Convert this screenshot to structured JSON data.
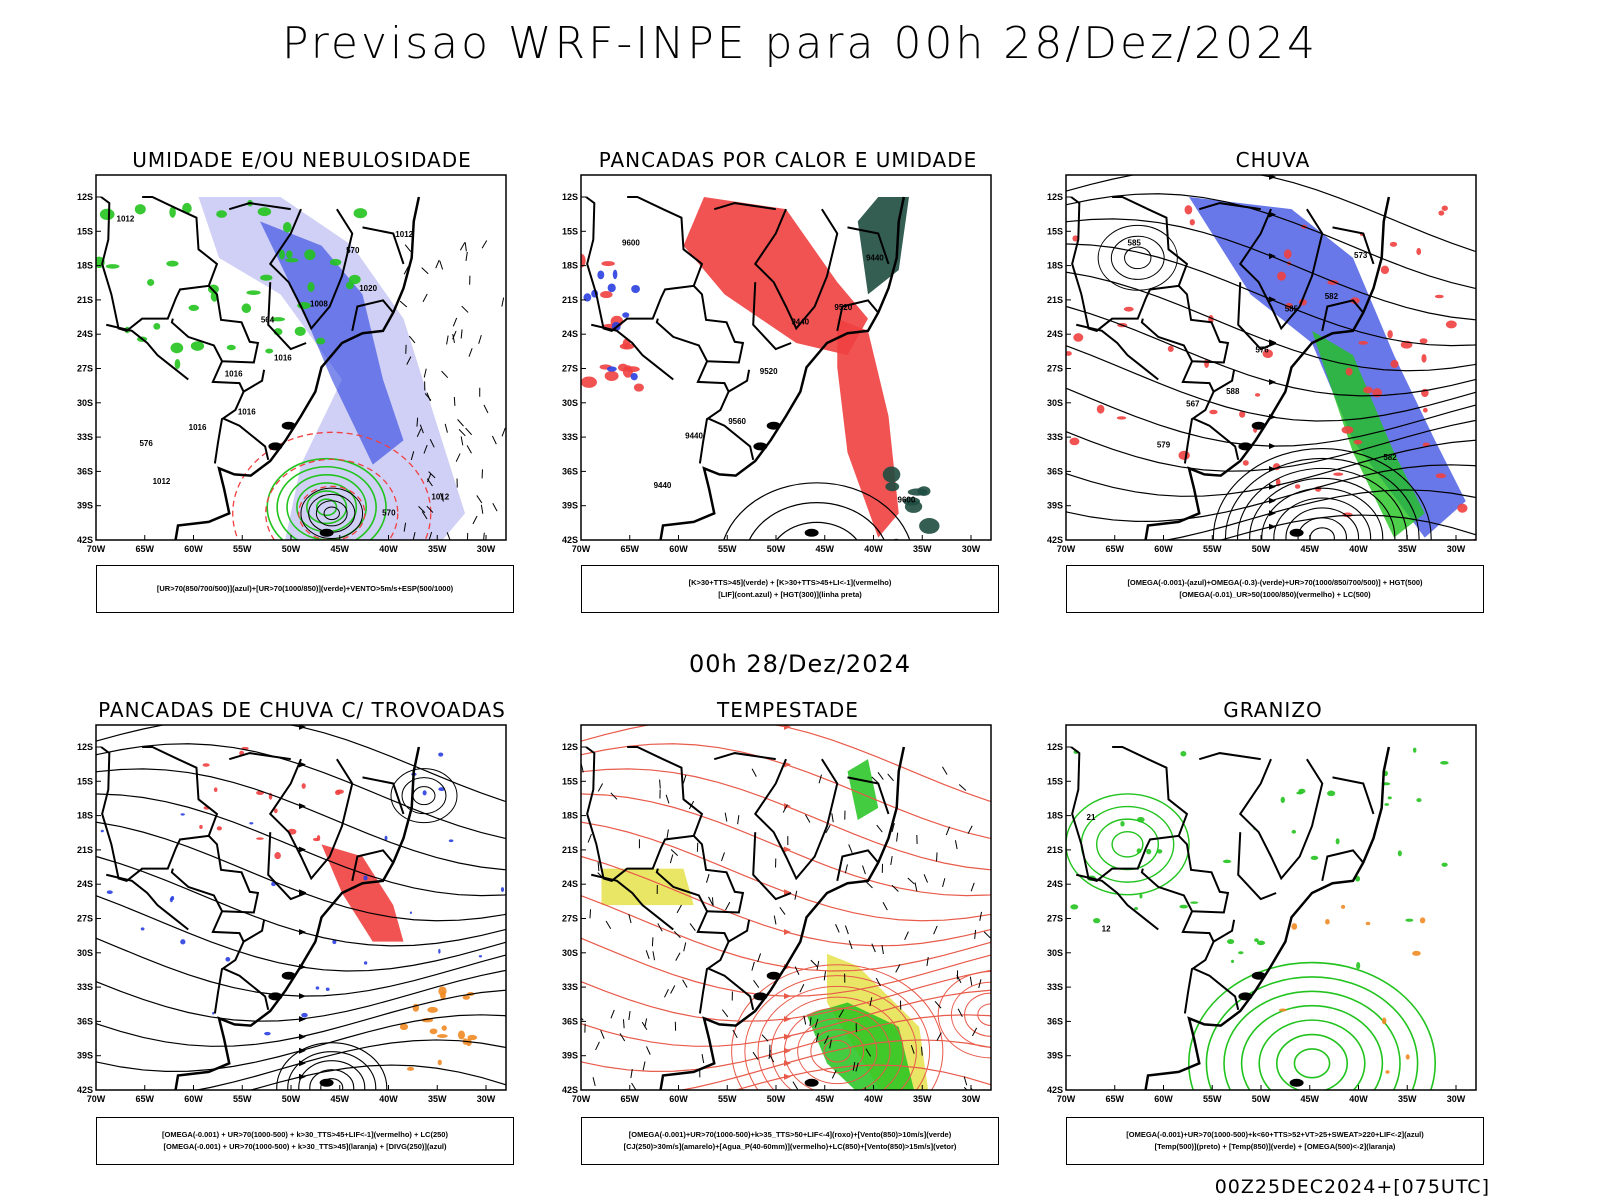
{
  "header": {
    "title": "Previsao WRF-INPE  para 00h 28/Dez/2024"
  },
  "subtitle": "00h 28/Dez/2024",
  "footer": "00Z25DEC2024+[075UTC]",
  "axes": {
    "lat_labels": [
      "12S",
      "15S",
      "18S",
      "21S",
      "24S",
      "27S",
      "30S",
      "33S",
      "36S",
      "39S",
      "42S"
    ],
    "lon_labels": [
      "70W",
      "65W",
      "60W",
      "55W",
      "50W",
      "45W",
      "40W",
      "35W",
      "30W"
    ]
  },
  "panels": [
    {
      "id": "umidade",
      "title": "UMIDADE E/OU NEBULOSIDADE",
      "legend": [
        "[UR>70(850/700/500)](azul)+[UR>70(1000/850)](verde)+VENTO>5m/s+ESP(500/1000)"
      ],
      "contour_labels": [
        "1012",
        "1016",
        "1020",
        "1012",
        "1016",
        "1012",
        "1016",
        "1008",
        "1012",
        "1016",
        "570",
        "576",
        "564",
        "570"
      ]
    },
    {
      "id": "pancadas-calor",
      "title": "PANCADAS POR CALOR E UMIDADE",
      "legend": [
        "[K>30+TTS>45](verde)  +  [K>30+TTS>45+LI<-1](vermelho)",
        "[LIF](cont.azul)  +  [HGT(300)](linha preta)"
      ],
      "contour_labels": [
        "9600",
        "9560",
        "9520",
        "9440",
        "9520",
        "9440",
        "9440",
        "9440",
        "9600"
      ]
    },
    {
      "id": "chuva",
      "title": "CHUVA",
      "legend": [
        "[OMEGA(-0.001)-(azul)+OMEGA(-0.3)-(verde)+UR>70(1000/850/700/500)]  +  HGT(500)",
        "[OMEGA(-0.01)_UR>50(1000/850)(vermelho) + LC(500)"
      ],
      "contour_labels": [
        "585",
        "588",
        "582",
        "579",
        "576",
        "573",
        "567",
        "585",
        "582"
      ]
    },
    {
      "id": "pancadas-trovoadas",
      "title": "PANCADAS DE CHUVA C/ TROVOADAS",
      "legend": [
        "[OMEGA(-0.001) + UR>70(1000-500) + k>30_TTS>45+LIF<-1](vermelho) + LC(250)",
        "[OMEGA(-0.001) + UR>70(1000-500) + k>30_TTS>45](laranja) + [DIVG(250)](azul)"
      ],
      "contour_labels": []
    },
    {
      "id": "tempestade",
      "title": "TEMPESTADE",
      "legend": [
        "[OMEGA(-0.001)+UR>70(1000-500)+k>35_TTS>50+LIF<-4](roxo)+[Vento(850)>10m/s](verde)",
        "[CJ(250)>30m/s](amarelo)+[Agua_P(40-60mm)](vermelho)+LC(850)+[Vento(850)>15m/s](vetor)"
      ],
      "contour_labels": []
    },
    {
      "id": "granizo",
      "title": "GRANIZO",
      "legend": [
        "[OMEGA(-0.001)+UR>70(1000-500)+k<60+TTS>52+VT>25+SWEAT>220+LIF<-2](azul)",
        "[Temp(500)](preto) + [Temp(850)](verde) + [OMEGA(500)<-2](laranja)"
      ],
      "contour_labels": [
        "21",
        "12"
      ]
    }
  ],
  "colors": {
    "blue": "#2a3fe0",
    "lightblue": "#a9a9ee",
    "green": "#22c31e",
    "red": "#f04040",
    "darkgreen": "#1f4d40",
    "orange": "#f08a22",
    "yellow": "#e3e040",
    "salmon": "#e85a4a"
  }
}
